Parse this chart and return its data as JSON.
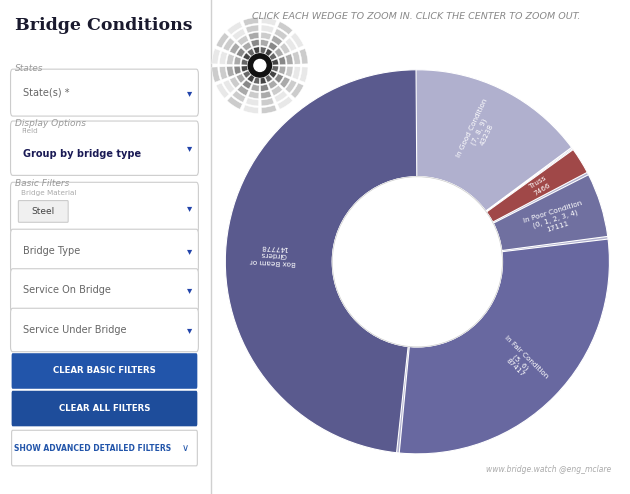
{
  "title": "CLICK EACH WEDGE TO ZOOM IN. CLICK THE CENTER TO ZOOM OUT.",
  "watermark": "www.bridge.watch @eng_mclare",
  "bg_color": "#ffffff",
  "panel_bg": "#f4f5f7",
  "panel_border": "#e0e0e0",
  "segments": [
    {
      "label": "In Good Condition\n(7, 8, 9)\n43238",
      "value": 43238,
      "color": "#7272A8"
    },
    {
      "label": "",
      "value": 800,
      "color": "#9090B5"
    },
    {
      "label": "",
      "value": 600,
      "color": "#9898BC"
    },
    {
      "label": "",
      "value": 400,
      "color": "#A0A0C2"
    },
    {
      "label": "",
      "value": 350,
      "color": "#A8A8C8"
    },
    {
      "label": "",
      "value": 280,
      "color": "#B0B0CE"
    },
    {
      "label": "Truss\n7466",
      "value": 7466,
      "color": "#A04848"
    },
    {
      "label": "In Poor Condition\n(0, 1, 2, 3, 4)\n17111",
      "value": 17111,
      "color": "#7070A0"
    },
    {
      "label": "In Fair Condition\n(5, 6)\n87417",
      "value": 87417,
      "color": "#6868A0"
    },
    {
      "label": "Box Beam or\nGirders\n147778",
      "value": 147778,
      "color": "#5A5A8E"
    }
  ],
  "mini_rings": [
    {
      "r_outer": 1.3,
      "r_inner": 1.1,
      "color": "#cccccc"
    },
    {
      "r_outer": 1.05,
      "r_inner": 0.88,
      "color": "#aaaaaa"
    },
    {
      "r_outer": 0.83,
      "r_inner": 0.68,
      "color": "#888888"
    },
    {
      "r_outer": 0.63,
      "r_inner": 0.5,
      "color": "#555555"
    },
    {
      "r_outer": 0.45,
      "r_inner": 0.33,
      "color": "#222222"
    }
  ]
}
